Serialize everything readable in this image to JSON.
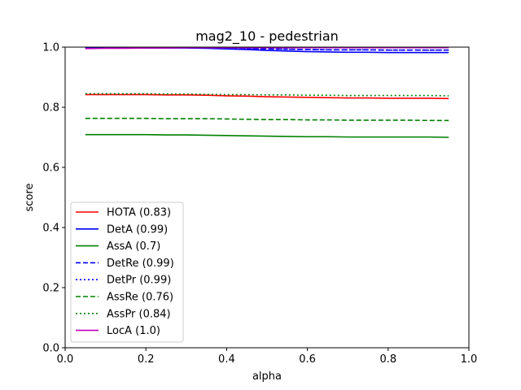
{
  "chart_data": {
    "type": "line",
    "title": "mag2_10 - pedestrian",
    "xlabel": "alpha",
    "ylabel": "score",
    "xlim": [
      0.0,
      1.0
    ],
    "ylim": [
      0.0,
      1.0
    ],
    "xticks": [
      "0.0",
      "0.2",
      "0.4",
      "0.6",
      "0.8",
      "1.0"
    ],
    "yticks": [
      "0.0",
      "0.2",
      "0.4",
      "0.6",
      "0.8",
      "1.0"
    ],
    "grid": false,
    "legend_position": "lower-left",
    "x": [
      0.05,
      0.1,
      0.15,
      0.2,
      0.25,
      0.3,
      0.35,
      0.4,
      0.45,
      0.5,
      0.55,
      0.6,
      0.65,
      0.7,
      0.75,
      0.8,
      0.85,
      0.9,
      0.95
    ],
    "series": [
      {
        "name": "HOTA (0.83)",
        "color": "#ff0000",
        "dash": "solid",
        "values": [
          0.842,
          0.842,
          0.842,
          0.842,
          0.841,
          0.841,
          0.84,
          0.838,
          0.837,
          0.835,
          0.834,
          0.833,
          0.832,
          0.831,
          0.831,
          0.83,
          0.83,
          0.83,
          0.829
        ]
      },
      {
        "name": "DetA (0.99)",
        "color": "#0000ff",
        "dash": "solid",
        "values": [
          0.997,
          0.997,
          0.997,
          0.997,
          0.997,
          0.997,
          0.996,
          0.994,
          0.992,
          0.989,
          0.987,
          0.985,
          0.984,
          0.983,
          0.983,
          0.982,
          0.982,
          0.982,
          0.982
        ]
      },
      {
        "name": "AssA (0.7)",
        "color": "#008000",
        "dash": "solid",
        "values": [
          0.709,
          0.709,
          0.709,
          0.709,
          0.708,
          0.708,
          0.707,
          0.706,
          0.705,
          0.704,
          0.703,
          0.702,
          0.702,
          0.701,
          0.701,
          0.701,
          0.701,
          0.701,
          0.7
        ]
      },
      {
        "name": "DetRe (0.99)",
        "color": "#0000ff",
        "dash": "dashed",
        "values": [
          0.998,
          0.998,
          0.998,
          0.998,
          0.998,
          0.998,
          0.997,
          0.996,
          0.995,
          0.994,
          0.993,
          0.992,
          0.991,
          0.991,
          0.991,
          0.99,
          0.99,
          0.99,
          0.99
        ]
      },
      {
        "name": "DetPr (0.99)",
        "color": "#0000ff",
        "dash": "dotted",
        "values": [
          0.998,
          0.998,
          0.998,
          0.998,
          0.998,
          0.998,
          0.997,
          0.996,
          0.995,
          0.994,
          0.993,
          0.992,
          0.991,
          0.991,
          0.991,
          0.99,
          0.99,
          0.99,
          0.99
        ]
      },
      {
        "name": "AssRe (0.76)",
        "color": "#008000",
        "dash": "dashed",
        "values": [
          0.763,
          0.763,
          0.763,
          0.763,
          0.762,
          0.762,
          0.762,
          0.761,
          0.76,
          0.759,
          0.759,
          0.758,
          0.758,
          0.757,
          0.757,
          0.757,
          0.757,
          0.756,
          0.756
        ]
      },
      {
        "name": "AssPr (0.84)",
        "color": "#008000",
        "dash": "dotted",
        "values": [
          0.845,
          0.845,
          0.845,
          0.845,
          0.844,
          0.844,
          0.843,
          0.842,
          0.842,
          0.841,
          0.841,
          0.84,
          0.84,
          0.839,
          0.839,
          0.839,
          0.839,
          0.839,
          0.838
        ]
      },
      {
        "name": "LocA (1.0)",
        "color": "#bf00bf",
        "dash": "solid",
        "values": [
          0.995,
          0.996,
          0.996,
          0.997,
          0.997,
          0.998,
          0.998,
          0.998,
          0.998,
          0.998,
          0.998,
          0.998,
          0.998,
          0.998,
          0.998,
          0.998,
          0.998,
          0.998,
          0.998
        ]
      }
    ]
  }
}
